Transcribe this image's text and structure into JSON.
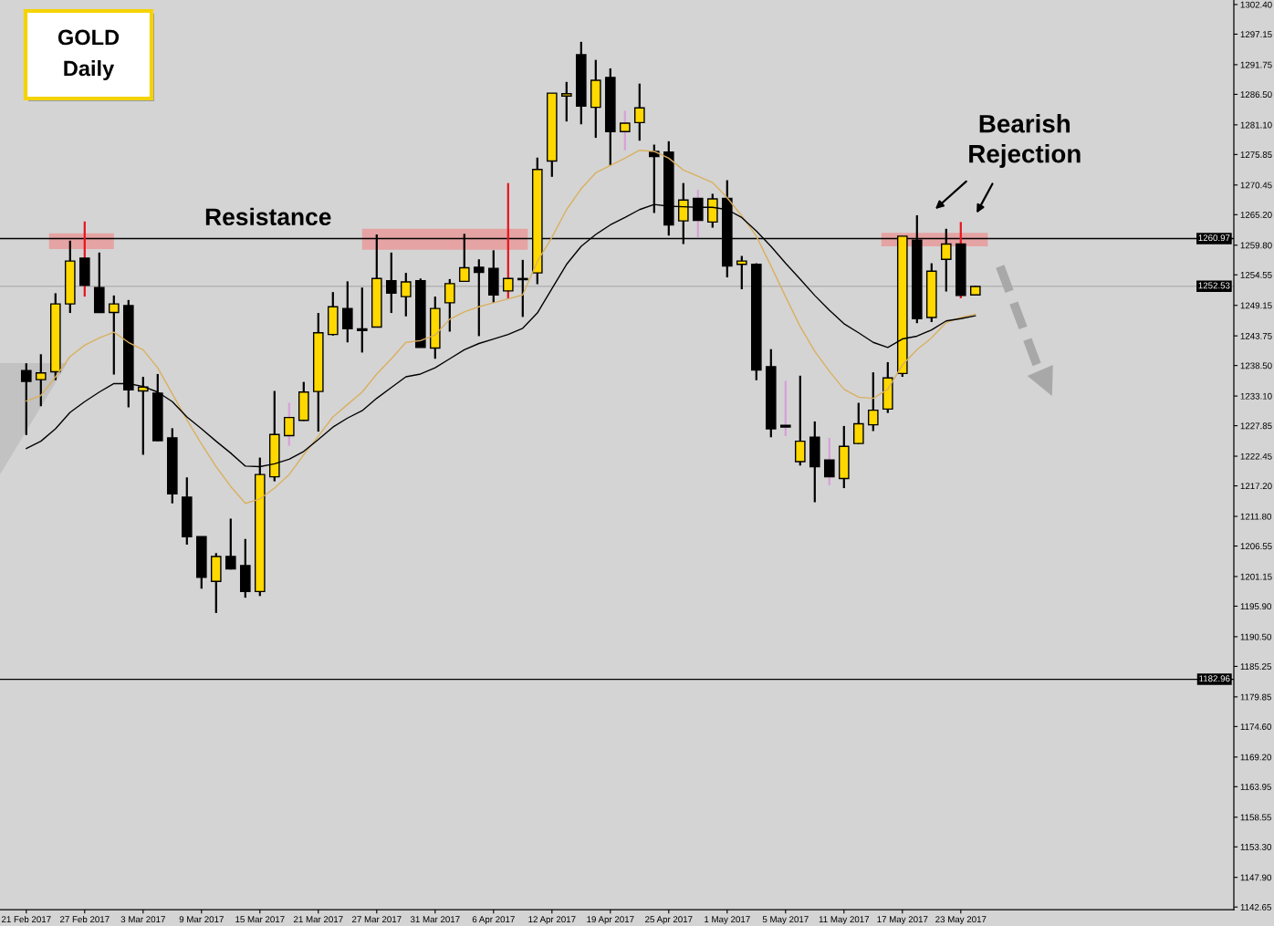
{
  "chart_data": {
    "type": "candlestick",
    "title": "GOLD",
    "subtitle": "Daily",
    "annotations": [
      "Resistance",
      "Bearish Rejection"
    ],
    "categories": [
      "21 Feb 2017",
      null,
      null,
      null,
      "27 Feb 2017",
      null,
      null,
      null,
      "3 Mar 2017",
      null,
      null,
      null,
      "9 Mar 2017",
      null,
      null,
      null,
      "15 Mar 2017",
      null,
      null,
      null,
      "21 Mar 2017",
      null,
      null,
      null,
      "27 Mar 2017",
      null,
      null,
      null,
      "31 Mar 2017",
      null,
      null,
      null,
      "6 Apr 2017",
      null,
      null,
      null,
      "12 Apr 2017",
      null,
      null,
      null,
      "19 Apr 2017",
      null,
      null,
      null,
      "25 Apr 2017",
      null,
      null,
      null,
      "1 May 2017",
      null,
      null,
      null,
      "5 May 2017",
      null,
      null,
      null,
      "11 May 2017",
      null,
      null,
      null,
      "17 May 2017",
      null,
      null,
      null,
      "23 May 2017",
      null
    ],
    "ylim": [
      1142.2,
      1303.2
    ],
    "yticks": [
      {
        "value": 1302.4,
        "label": "1302.40"
      },
      1297.15,
      1291.75,
      {
        "value": 1286.5,
        "label": "1286.50"
      },
      {
        "value": 1281.1,
        "label": "1281.10"
      },
      1275.85,
      1270.45,
      {
        "value": 1265.2,
        "label": "1265.20"
      },
      {
        "value": 1259.8,
        "label": "1259.80"
      },
      1254.55,
      1249.15,
      1243.75,
      {
        "value": 1238.5,
        "label": "1238.50"
      },
      {
        "value": 1233.1,
        "label": "1233.10"
      },
      1227.85,
      1222.45,
      {
        "value": 1217.2,
        "label": "1217.20"
      },
      {
        "value": 1211.8,
        "label": "1211.80"
      },
      1206.55,
      1201.15,
      {
        "value": 1195.9,
        "label": "1195.90"
      },
      {
        "value": 1190.5,
        "label": "1190.50"
      },
      1185.25,
      1179.85,
      {
        "value": 1174.6,
        "label": "1174.60"
      },
      {
        "value": 1169.2,
        "label": "1169.20"
      },
      1163.95,
      1158.55,
      {
        "value": 1153.3,
        "label": "1153.30"
      },
      {
        "value": 1147.9,
        "label": "1147.90"
      },
      1142.65
    ],
    "ref_lines": [
      {
        "axis": "y",
        "value": 1260.97,
        "label": "1260.97",
        "color": "#000000"
      },
      {
        "axis": "y",
        "value": 1252.53,
        "label": "1252.53",
        "color": "#b3b3b3"
      },
      {
        "axis": "y",
        "value": 1182.96,
        "label": "1182.96",
        "color": "#000000"
      }
    ],
    "bands": [
      {
        "axis": "y",
        "from": 1259.1,
        "to": 1261.9,
        "color": "#e5a3a3"
      },
      {
        "axis": "y",
        "from": 1259.0,
        "to": 1262.7,
        "color": "#e5a3a3"
      },
      {
        "axis": "y",
        "from": 1259.6,
        "to": 1262.0,
        "color": "#e5a3a3"
      }
    ],
    "series": [
      {
        "type": "line",
        "color": "#d9b060",
        "values": [
          1232.2,
          1233.2,
          1236.5,
          1240.1,
          1242.1,
          1243.4,
          1244.4,
          1242.6,
          1241.3,
          1238.1,
          1233.5,
          1228.9,
          1224.6,
          1220.6,
          1217.1,
          1214.1,
          1214.9,
          1216.8,
          1219.2,
          1222.7,
          1226.0,
          1229.4,
          1231.6,
          1233.8,
          1237.0,
          1239.7,
          1242.6,
          1242.9,
          1243.9,
          1246.7,
          1248.0,
          1248.9,
          1249.6,
          1250.3,
          1251.0,
          1256.9,
          1261.2,
          1266.1,
          1269.8,
          1272.6,
          1273.9,
          1275.2,
          1276.6,
          1276.4,
          1275.2,
          1273.1,
          1272.0,
          1270.9,
          1268.2,
          1265.0,
          1261.4,
          1256.1,
          1250.7,
          1245.4,
          1241.0,
          1237.5,
          1234.3,
          1232.9,
          1232.7,
          1234.3,
          1238.6,
          1241.3,
          1243.4,
          1246.1,
          1247.0,
          1247.6
        ]
      },
      {
        "type": "line",
        "color": "#000000",
        "values": [
          1223.8,
          1225.1,
          1227.3,
          1230.2,
          1232.1,
          1233.8,
          1235.3,
          1235.3,
          1234.8,
          1233.8,
          1232.1,
          1229.4,
          1227.3,
          1225.1,
          1223.0,
          1220.7,
          1220.6,
          1221.1,
          1221.9,
          1223.3,
          1225.4,
          1227.6,
          1229.2,
          1230.5,
          1232.7,
          1234.6,
          1236.5,
          1237.0,
          1238.1,
          1239.7,
          1241.3,
          1242.4,
          1243.2,
          1244.0,
          1245.1,
          1247.8,
          1252.1,
          1256.4,
          1259.6,
          1261.7,
          1263.4,
          1264.7,
          1266.1,
          1267.0,
          1266.7,
          1266.6,
          1266.5,
          1266.5,
          1266.1,
          1264.7,
          1262.3,
          1259.6,
          1256.6,
          1253.8,
          1250.9,
          1248.3,
          1245.9,
          1244.3,
          1242.6,
          1241.7,
          1243.2,
          1243.7,
          1244.8,
          1246.4,
          1246.8,
          1247.3
        ]
      },
      {
        "color": "#000000",
        "ohlc": [
          [
            1237.6,
            1238.9,
            1226.2,
            1235.7
          ],
          [
            1236.0,
            1240.5,
            1231.3,
            1237.2
          ],
          [
            1237.4,
            1251.3,
            1235.9,
            1249.4
          ],
          [
            1249.4,
            1260.6,
            1247.8,
            1257.0
          ],
          null,
          [
            1252.3,
            1258.5,
            1247.8,
            1247.9
          ],
          [
            1247.9,
            1250.9,
            1236.9,
            1249.4
          ],
          [
            1249.1,
            1250.1,
            1231.1,
            1234.2
          ],
          [
            1234.0,
            1236.5,
            1222.7,
            1234.7
          ],
          [
            1233.6,
            1237.0,
            1225.1,
            1225.2
          ],
          [
            1225.7,
            1227.4,
            1214.1,
            1215.8
          ],
          [
            1215.2,
            1218.7,
            1206.8,
            1208.2
          ],
          [
            1208.2,
            1208.2,
            1199.0,
            1201.0
          ],
          [
            1200.3,
            1205.3,
            1194.7,
            1204.7
          ],
          [
            1204.7,
            1211.4,
            1202.4,
            1202.5
          ],
          [
            1203.1,
            1207.8,
            1197.4,
            1198.5
          ],
          [
            1198.5,
            1222.2,
            1197.7,
            1219.2
          ],
          [
            1218.8,
            1234.0,
            1218.0,
            1226.3
          ],
          null,
          [
            1228.8,
            1235.6,
            1228.7,
            1233.8
          ],
          [
            1233.9,
            1247.8,
            1226.8,
            1244.3
          ],
          [
            1244.0,
            1251.5,
            1243.8,
            1248.9
          ],
          [
            1248.6,
            1253.4,
            1242.6,
            1245.0
          ],
          [
            1245.0,
            1252.3,
            1240.8,
            1244.7
          ],
          [
            1245.3,
            1261.7,
            1245.3,
            1253.9
          ],
          [
            1253.5,
            1258.5,
            1247.8,
            1251.3
          ],
          [
            1250.7,
            1254.9,
            1247.2,
            1253.3
          ],
          [
            1253.5,
            1253.9,
            1241.7,
            1241.7
          ],
          [
            1241.6,
            1250.7,
            1239.7,
            1248.6
          ],
          [
            1249.6,
            1253.8,
            1244.5,
            1253.0
          ],
          [
            1253.4,
            1261.8,
            1253.3,
            1255.8
          ],
          [
            1255.9,
            1257.3,
            1243.7,
            1255.0
          ],
          [
            1255.7,
            1258.9,
            1249.6,
            1251.0
          ],
          null,
          [
            1253.9,
            1257.2,
            1247.1,
            1253.7
          ],
          [
            1254.9,
            1275.3,
            1252.9,
            1273.2
          ],
          [
            1274.7,
            1286.7,
            1271.9,
            1286.7
          ],
          [
            1286.2,
            1288.7,
            1281.7,
            1286.6
          ],
          [
            1293.5,
            1295.8,
            1281.2,
            1284.4
          ],
          [
            1284.2,
            1292.6,
            1278.8,
            1289.0
          ],
          [
            1289.5,
            1291.1,
            1273.9,
            1279.9
          ],
          null,
          [
            1281.5,
            1288.4,
            1278.3,
            1284.1
          ],
          [
            1276.4,
            1277.6,
            1265.5,
            1275.5
          ],
          [
            1276.3,
            1278.2,
            1261.5,
            1263.4
          ],
          [
            1264.1,
            1270.8,
            1260.0,
            1267.8
          ],
          null,
          [
            1263.9,
            1268.9,
            1262.9,
            1268.0
          ],
          [
            1268.1,
            1271.3,
            1254.1,
            1256.1
          ],
          [
            1256.4,
            1257.9,
            1252.0,
            1257.0
          ],
          [
            1256.4,
            1256.6,
            1235.9,
            1237.7
          ],
          [
            1238.3,
            1241.4,
            1225.8,
            1227.3
          ],
          null,
          [
            1221.5,
            1236.7,
            1220.8,
            1225.1
          ],
          [
            1225.8,
            1228.6,
            1214.3,
            1220.6
          ],
          null,
          [
            1218.5,
            1227.8,
            1216.8,
            1224.2
          ],
          [
            1224.7,
            1231.9,
            1224.6,
            1228.2
          ],
          [
            1228.0,
            1237.3,
            1226.9,
            1230.6
          ],
          [
            1230.8,
            1239.1,
            1230.1,
            1236.3
          ],
          [
            1237.1,
            1261.4,
            1236.5,
            1261.4
          ],
          [
            1260.7,
            1265.1,
            1246.0,
            1246.8
          ],
          [
            1247.0,
            1256.6,
            1246.2,
            1255.2
          ],
          [
            1257.3,
            1262.7,
            1251.6,
            1260.0
          ],
          null,
          [
            1251.0,
            1252.6,
            1250.9,
            1252.5
          ]
        ],
        "colors": [
          "#000000",
          "#ffd800",
          "#ffd800",
          "#ffd800",
          null,
          "#000000",
          "#ffd800",
          "#000000",
          "#ffd800",
          "#000000",
          "#000000",
          "#000000",
          "#000000",
          "#ffd800",
          "#000000",
          "#000000",
          "#ffd800",
          "#ffd800",
          null,
          "#ffd800",
          "#ffd800",
          "#ffd800",
          "#000000",
          "#000000",
          "#ffd800",
          "#000000",
          "#ffd800",
          "#000000",
          "#ffd800",
          "#ffd800",
          "#ffd800",
          "#000000",
          "#000000",
          null,
          "#000000",
          "#ffd800",
          "#ffd800",
          "#ffd800",
          "#000000",
          "#ffd800",
          "#000000",
          null,
          "#ffd800",
          "#000000",
          "#000000",
          "#ffd800",
          null,
          "#ffd800",
          "#000000",
          "#ffd800",
          "#000000",
          "#000000",
          null,
          "#ffd800",
          "#000000",
          null,
          "#ffd800",
          "#ffd800",
          "#ffd800",
          "#ffd800",
          "#ffd800",
          "#000000",
          "#ffd800",
          "#ffd800",
          null,
          "#ffd800"
        ]
      },
      {
        "color": "#d8a0d8",
        "ohlc": [
          null,
          null,
          null,
          null,
          null,
          null,
          null,
          null,
          null,
          null,
          null,
          null,
          null,
          null,
          null,
          null,
          null,
          null,
          [
            1226.1,
            1231.9,
            1224.3,
            1229.3
          ],
          null,
          null,
          null,
          null,
          null,
          null,
          null,
          null,
          null,
          null,
          null,
          null,
          null,
          null,
          null,
          null,
          null,
          null,
          null,
          null,
          null,
          null,
          [
            1279.9,
            1283.6,
            1276.6,
            1281.4
          ],
          null,
          null,
          null,
          null,
          [
            1268.1,
            1269.6,
            1261.2,
            1264.2
          ],
          null,
          null,
          null,
          null,
          null,
          [
            1227.9,
            1235.8,
            1226.0,
            1227.6
          ],
          null,
          null,
          [
            1221.8,
            1225.7,
            1217.3,
            1218.8
          ],
          null,
          null,
          null,
          null,
          null,
          null,
          null,
          null,
          null,
          null
        ],
        "colors": [
          null,
          null,
          null,
          null,
          null,
          null,
          null,
          null,
          null,
          null,
          null,
          null,
          null,
          null,
          null,
          null,
          null,
          null,
          "#ffd800",
          null,
          null,
          null,
          null,
          null,
          null,
          null,
          null,
          null,
          null,
          null,
          null,
          null,
          null,
          null,
          null,
          null,
          null,
          null,
          null,
          null,
          null,
          "#ffd800",
          null,
          null,
          null,
          null,
          "#000000",
          null,
          null,
          null,
          null,
          null,
          "#000000",
          null,
          null,
          "#000000",
          null,
          null,
          null,
          null,
          null,
          null,
          null,
          null,
          null,
          null
        ]
      },
      {
        "color": "#e8141e",
        "ohlc": [
          null,
          null,
          null,
          null,
          [
            1257.5,
            1264.0,
            1250.7,
            1252.7
          ],
          null,
          null,
          null,
          null,
          null,
          null,
          null,
          null,
          null,
          null,
          null,
          null,
          null,
          null,
          null,
          null,
          null,
          null,
          null,
          null,
          null,
          null,
          null,
          null,
          null,
          null,
          null,
          null,
          [
            1251.7,
            1270.8,
            1250.4,
            1253.9
          ],
          null,
          null,
          null,
          null,
          null,
          null,
          null,
          null,
          null,
          null,
          null,
          null,
          null,
          null,
          null,
          null,
          null,
          null,
          null,
          null,
          null,
          null,
          null,
          null,
          null,
          null,
          null,
          null,
          null,
          null,
          [
            1260.0,
            1263.9,
            1250.4,
            1250.9
          ],
          null
        ],
        "colors": [
          null,
          null,
          null,
          null,
          "#000000",
          null,
          null,
          null,
          null,
          null,
          null,
          null,
          null,
          null,
          null,
          null,
          null,
          null,
          null,
          null,
          null,
          null,
          null,
          null,
          null,
          null,
          null,
          null,
          null,
          null,
          null,
          null,
          null,
          "#ffd800",
          null,
          null,
          null,
          null,
          null,
          null,
          null,
          null,
          null,
          null,
          null,
          null,
          null,
          null,
          null,
          null,
          null,
          null,
          null,
          null,
          null,
          null,
          null,
          null,
          null,
          null,
          null,
          null,
          null,
          null,
          "#000000",
          null
        ]
      }
    ]
  }
}
